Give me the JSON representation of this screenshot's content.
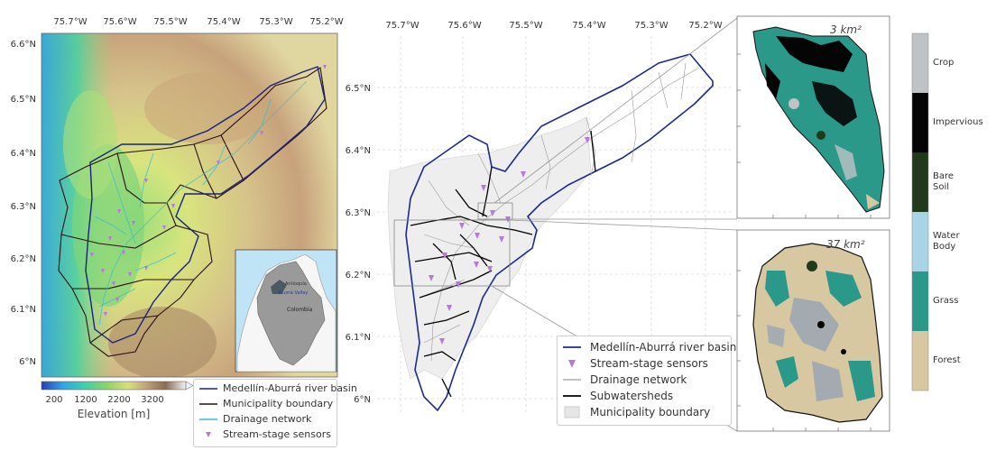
{
  "left_map": {
    "lon_ticks": [
      "75.7°W",
      "75.6°W",
      "75.5°W",
      "75.4°W",
      "75.3°W",
      "75.2°W"
    ],
    "lat_ticks": [
      "6.6°N",
      "6.5°N",
      "6.4°N",
      "6.3°N",
      "6.2°N",
      "6.1°N",
      "6°N"
    ],
    "colorbar": {
      "ticks": [
        "200",
        "1200",
        "2200",
        "3200"
      ],
      "label": "Elevation [m]",
      "colors": [
        "#2a3fb5",
        "#2fa7e3",
        "#3fd0a8",
        "#8ad46a",
        "#d9df7a",
        "#c4a57a",
        "#8c6b50",
        "#f2f2f2"
      ]
    },
    "inset": {
      "country": "Colombia",
      "region": "Aburrá Valley",
      "small_label": "Antioquia"
    },
    "legend": [
      {
        "label": "Medellín-Aburrá river basin",
        "symbol": "navy-line"
      },
      {
        "label": "Municipality boundary",
        "symbol": "dark-line"
      },
      {
        "label": "Drainage network",
        "symbol": "cyan-line"
      },
      {
        "label": "Stream-stage sensors",
        "symbol": "purple-triangle"
      }
    ]
  },
  "center_map": {
    "lon_ticks": [
      "75.7°W",
      "75.6°W",
      "75.5°W",
      "75.4°W",
      "75.3°W",
      "75.2°W"
    ],
    "lat_ticks": [
      "6.5°N",
      "6.4°N",
      "6.3°N",
      "6.2°N",
      "6.1°N",
      "6°N"
    ],
    "legend": [
      {
        "label": "Medellín-Aburrá river basin",
        "symbol": "navy-line"
      },
      {
        "label": "Stream-stage sensors",
        "symbol": "purple-triangle"
      },
      {
        "label": "Drainage network",
        "symbol": "gray-line"
      },
      {
        "label": "Subwatersheds",
        "symbol": "black-line"
      },
      {
        "label": "Municipality boundary",
        "symbol": "gray-patch"
      }
    ]
  },
  "insets": {
    "top_area": "3 km²",
    "bottom_area": "37 km²"
  },
  "landcover_legend": [
    {
      "label": "Crop",
      "color": "#bfc3c6"
    },
    {
      "label": "Impervious",
      "color": "#050505"
    },
    {
      "label": "Bare Soil",
      "color": "#213a1b"
    },
    {
      "label": "Water Body",
      "color": "#a9d4e6"
    },
    {
      "label": "Grass",
      "color": "#2b998a"
    },
    {
      "label": "Forest",
      "color": "#d7c8a1"
    }
  ]
}
